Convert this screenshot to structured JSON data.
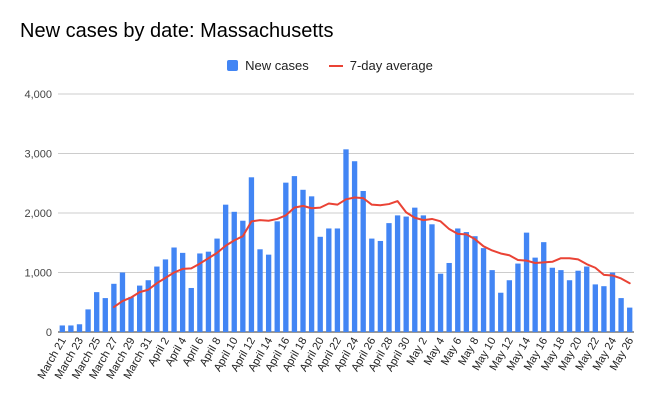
{
  "chart_data": {
    "type": "bar",
    "title": "New cases by date: Massachusetts",
    "xlabel": "",
    "ylabel": "",
    "ylim": [
      0,
      4000
    ],
    "yticks": [
      "0",
      "1,000",
      "2,000",
      "3,000",
      "4,000"
    ],
    "ytick_values": [
      0,
      1000,
      2000,
      3000,
      4000
    ],
    "grid": true,
    "legend_position": "top-center",
    "categories": [
      "March 21",
      "March 22",
      "March 23",
      "March 24",
      "March 25",
      "March 26",
      "March 27",
      "March 28",
      "March 29",
      "March 30",
      "March 31",
      "April 1",
      "April 2",
      "April 3",
      "April 4",
      "April 5",
      "April 6",
      "April 7",
      "April 8",
      "April 9",
      "April 10",
      "April 11",
      "April 12",
      "April 13",
      "April 14",
      "April 15",
      "April 16",
      "April 17",
      "April 18",
      "April 19",
      "April 20",
      "April 21",
      "April 22",
      "April 23",
      "April 24",
      "April 25",
      "April 26",
      "April 27",
      "April 28",
      "April 29",
      "April 30",
      "May 1",
      "May 2",
      "May 3",
      "May 4",
      "May 5",
      "May 6",
      "May 7",
      "May 8",
      "May 9",
      "May 10",
      "May 11",
      "May 12",
      "May 13",
      "May 14",
      "May 15",
      "May 16",
      "May 17",
      "May 18",
      "May 19",
      "May 20",
      "May 21",
      "May 22",
      "May 23",
      "May 24",
      "May 25",
      "May 26"
    ],
    "visible_tick_labels": [
      "March 21",
      "March 23",
      "March 25",
      "March 27",
      "March 29",
      "March 31",
      "April 2",
      "April 4",
      "April 6",
      "April 8",
      "April 10",
      "April 12",
      "April 14",
      "April 16",
      "April 18",
      "April 20",
      "April 22",
      "April 24",
      "April 26",
      "April 28",
      "April 30",
      "May 2",
      "May 4",
      "May 6",
      "May 8",
      "May 10",
      "May 12",
      "May 14",
      "May 16",
      "May 18",
      "May 20",
      "May 22",
      "May 24",
      "May 26"
    ],
    "series": [
      {
        "name": "New cases",
        "kind": "bar",
        "color": "#4285f4",
        "values": [
          110,
          110,
          130,
          380,
          670,
          570,
          810,
          1000,
          590,
          780,
          870,
          1100,
          1220,
          1420,
          1330,
          740,
          1320,
          1350,
          1570,
          2140,
          2020,
          1870,
          2600,
          1390,
          1300,
          1860,
          2510,
          2620,
          2390,
          2280,
          1600,
          1740,
          1740,
          3070,
          2870,
          2370,
          1570,
          1530,
          1830,
          1960,
          1940,
          2090,
          1960,
          1810,
          980,
          1160,
          1740,
          1680,
          1610,
          1410,
          1040,
          660,
          870,
          1150,
          1670,
          1250,
          1510,
          1080,
          1040,
          870,
          1030,
          1100,
          800,
          770,
          1000,
          570,
          410
        ]
      },
      {
        "name": "7-day average",
        "kind": "line",
        "color": "#ea4335",
        "values": [
          null,
          null,
          null,
          null,
          null,
          null,
          420,
          520,
          580,
          670,
          710,
          820,
          910,
          1000,
          1060,
          1070,
          1150,
          1240,
          1330,
          1450,
          1540,
          1610,
          1860,
          1880,
          1870,
          1900,
          1960,
          2090,
          2120,
          2080,
          2090,
          2160,
          2140,
          2230,
          2260,
          2250,
          2140,
          2130,
          2150,
          2200,
          2010,
          1920,
          1880,
          1900,
          1860,
          1730,
          1650,
          1640,
          1560,
          1440,
          1370,
          1320,
          1290,
          1210,
          1200,
          1160,
          1170,
          1180,
          1240,
          1240,
          1220,
          1140,
          1080,
          960,
          950,
          900,
          820
        ]
      }
    ]
  }
}
